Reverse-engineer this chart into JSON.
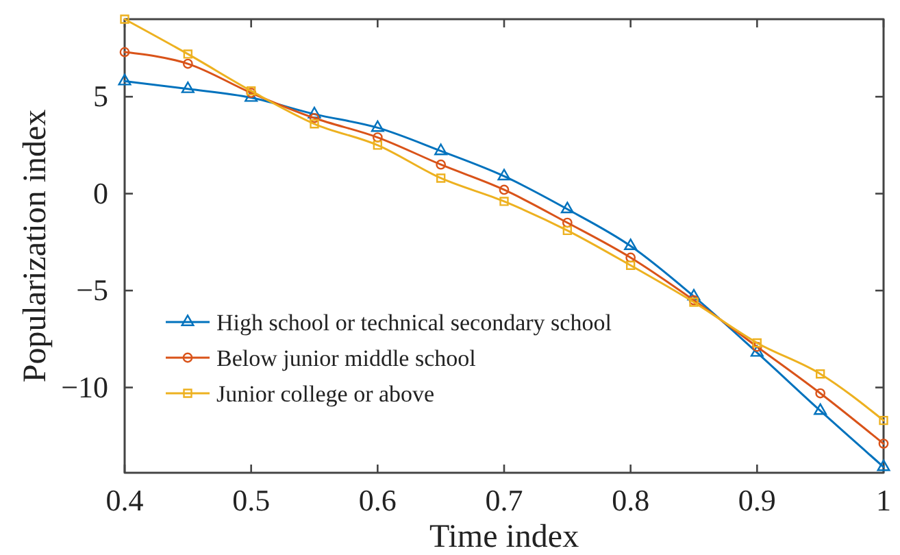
{
  "chart_data": {
    "type": "line",
    "xlabel": "Time index",
    "ylabel": "Popularization index",
    "x": [
      0.4,
      0.45,
      0.5,
      0.55,
      0.6,
      0.65,
      0.7,
      0.75,
      0.8,
      0.85,
      0.9,
      0.95,
      1.0
    ],
    "series": [
      {
        "name": "High school or technical secondary school",
        "color": "#0072bd",
        "marker": "triangle",
        "values": [
          5.8,
          5.4,
          4.95,
          4.1,
          3.4,
          2.2,
          0.9,
          -0.8,
          -2.7,
          -5.3,
          -8.2,
          -11.2,
          -14.1
        ]
      },
      {
        "name": "Below junior middle school",
        "color": "#d95319",
        "marker": "circle",
        "values": [
          7.3,
          6.7,
          5.2,
          3.9,
          2.9,
          1.5,
          0.2,
          -1.5,
          -3.3,
          -5.5,
          -7.9,
          -10.3,
          -12.9
        ]
      },
      {
        "name": "Junior college or above",
        "color": "#edb120",
        "marker": "square",
        "values": [
          9.0,
          7.2,
          5.3,
          3.6,
          2.5,
          0.8,
          -0.4,
          -1.9,
          -3.7,
          -5.6,
          -7.7,
          -9.3,
          -11.7
        ]
      }
    ],
    "xlim": [
      0.4,
      1.0
    ],
    "xticks": [
      0.4,
      0.5,
      0.6,
      0.7,
      0.8,
      0.9,
      1
    ],
    "ylim": [
      -14.4,
      9
    ],
    "yticks": [
      {
        "value": 5,
        "label": "5"
      },
      {
        "value": 0,
        "label": "0"
      },
      {
        "value": -5,
        "label": "−5"
      },
      {
        "value": -10,
        "label": "−10"
      }
    ],
    "grid": false,
    "legend": "bottom left",
    "line_style": "solid"
  }
}
